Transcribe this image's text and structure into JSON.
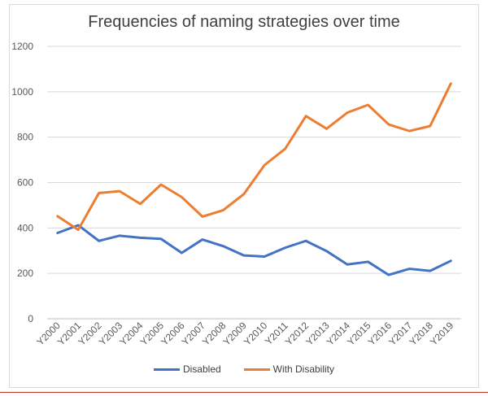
{
  "chart_data": {
    "type": "line",
    "title": "Frequencies of naming strategies over time",
    "xlabel": "",
    "ylabel": "",
    "categories": [
      "Y2000",
      "Y2001",
      "Y2002",
      "Y2003",
      "Y2004",
      "Y2005",
      "Y2006",
      "Y2007",
      "Y2008",
      "Y2009",
      "Y2010",
      "Y2011",
      "Y2012",
      "Y2013",
      "Y2014",
      "Y2015",
      "Y2016",
      "Y2017",
      "Y2018",
      "Y2019"
    ],
    "ylim": [
      0,
      1200
    ],
    "yticks": [
      0,
      200,
      400,
      600,
      800,
      1000,
      1200
    ],
    "grid": true,
    "legend_position": "bottom",
    "series": [
      {
        "name": "Disabled",
        "color": "#4472C4",
        "values": [
          378,
          412,
          343,
          366,
          357,
          352,
          290,
          349,
          320,
          279,
          274,
          313,
          343,
          298,
          239,
          251,
          193,
          220,
          211,
          255
        ]
      },
      {
        "name": "With Disability",
        "color": "#ED7D31",
        "values": [
          452,
          392,
          554,
          562,
          506,
          591,
          536,
          450,
          478,
          549,
          677,
          749,
          893,
          837,
          908,
          942,
          856,
          827,
          849,
          1036
        ]
      }
    ]
  }
}
